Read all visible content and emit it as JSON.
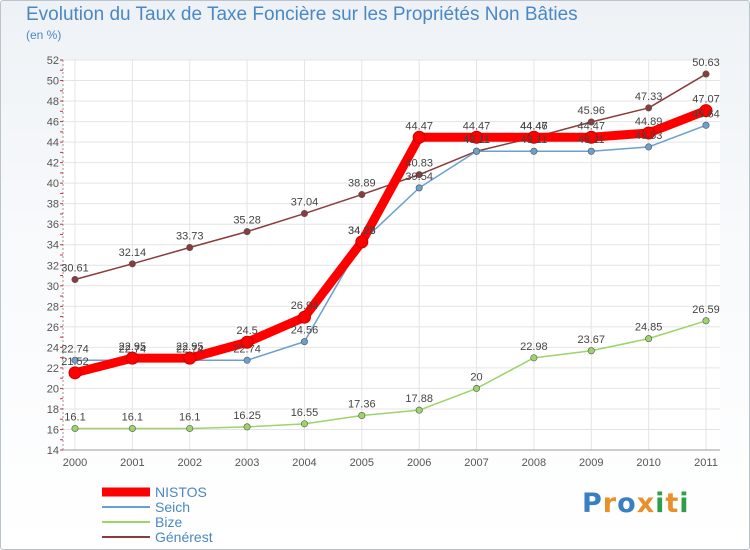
{
  "chart_data": {
    "type": "line",
    "title": "Evolution du Taux de Taxe Foncière sur les Propriétés Non Bâties",
    "subtitle": "(en %)",
    "x": [
      "2000",
      "2001",
      "2002",
      "2003",
      "2004",
      "2005",
      "2006",
      "2007",
      "2008",
      "2009",
      "2010",
      "2011"
    ],
    "ylim": [
      14,
      52
    ],
    "yticks": [
      14,
      16,
      18,
      20,
      22,
      24,
      26,
      28,
      30,
      32,
      34,
      36,
      38,
      40,
      42,
      44,
      46,
      48,
      50,
      52
    ],
    "series": [
      {
        "name": "NISTOS",
        "color": "#ff0000",
        "values": [
          21.52,
          22.95,
          22.95,
          24.5,
          26.94,
          34.28,
          44.47,
          44.47,
          44.47,
          44.47,
          44.89,
          47.07
        ],
        "labels": [
          "21.52",
          "22.95",
          "22.95",
          "24.5",
          "26.94",
          "34.28",
          "44.47",
          "44.47",
          "44.47",
          "44.47",
          "44.89",
          "47.07"
        ]
      },
      {
        "name": "Seich",
        "color": "#6b9fcd",
        "values": [
          22.74,
          22.74,
          22.74,
          22.74,
          24.56,
          34.28,
          39.54,
          43.11,
          43.11,
          43.11,
          43.53,
          45.64
        ],
        "labels": [
          "22.74",
          "22.74",
          "22.74",
          "22.74",
          "24.56",
          "34.28",
          "39.54",
          "43.11",
          "43.11",
          "43.11",
          "43.53",
          "45.64"
        ]
      },
      {
        "name": "Bize",
        "color": "#9cd46a",
        "values": [
          16.1,
          16.1,
          16.1,
          16.25,
          16.55,
          17.36,
          17.88,
          20,
          22.98,
          23.67,
          24.85,
          26.59
        ],
        "labels": [
          "16.1",
          "16.1",
          "16.1",
          "16.25",
          "16.55",
          "17.36",
          "17.88",
          "20",
          "22.98",
          "23.67",
          "24.85",
          "26.59"
        ]
      },
      {
        "name": "Générest",
        "color": "#8a3b3b",
        "values": [
          30.61,
          32.14,
          33.73,
          35.28,
          37.04,
          38.89,
          40.83,
          43.11,
          44.46,
          45.96,
          47.33,
          50.63
        ],
        "labels": [
          "30.61",
          "32.14",
          "33.73",
          "35.28",
          "37.04",
          "38.89",
          "40.83",
          "43.11",
          "44.46",
          "45.96",
          "47.33",
          "50.63"
        ]
      }
    ]
  },
  "logo": {
    "text": "Proxiti",
    "colors": [
      "#3a7fc0",
      "#e8902a",
      "#3a7fc0",
      "#e8902a",
      "#2e9e4a",
      "#e8902a",
      "#2e9e4a"
    ]
  }
}
